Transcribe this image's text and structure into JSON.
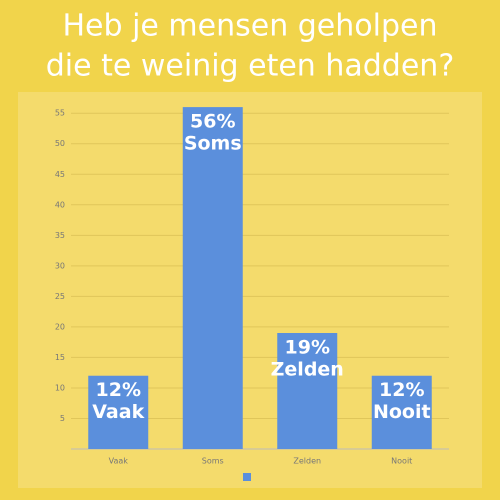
{
  "chart_data": {
    "type": "bar",
    "title": [
      "Heb je mensen geholpen",
      "die te weinig eten hadden?"
    ],
    "categories": [
      "Vaak",
      "Soms",
      "Zelden",
      "Nooit"
    ],
    "values": [
      12,
      56,
      19,
      12
    ],
    "value_labels": [
      "12%",
      "56%",
      "19%",
      "12%"
    ],
    "color": "#5b8fdc",
    "ylim": [
      0,
      57
    ],
    "yticks": [
      5,
      10,
      15,
      20,
      25,
      30,
      35,
      40,
      45,
      50,
      55
    ],
    "grid": true
  }
}
